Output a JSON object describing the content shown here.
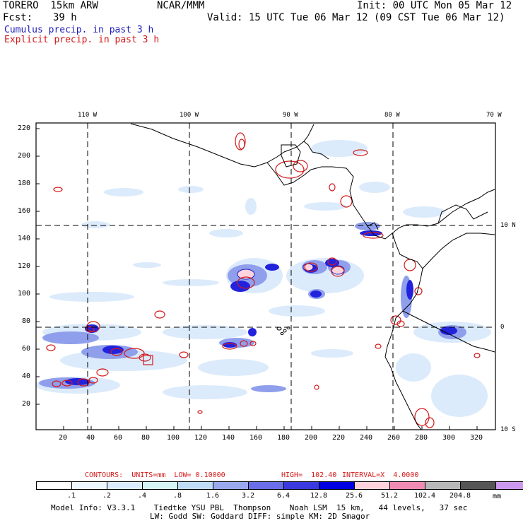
{
  "header": {
    "model": "TORERO  15km ARW",
    "org": "NCAR/MMM",
    "init": "Init: 00 UTC Mon 05 Mar 12",
    "fcst_label": "Fcst:",
    "fcst_value": "39 h",
    "valid": "Valid: 15 UTC Tue 06 Mar 12 (09 CST Tue 06 Mar 12)",
    "line_cumulus": "Cumulus precip. in past 3 h",
    "line_explicit": "Explicit precip. in past 3 h"
  },
  "colors": {
    "cumulus": "#1b1bb8",
    "explicit": "#d21a1a",
    "coast": "#000000"
  },
  "map": {
    "top_lon_labels": [
      "110 W",
      "100 W",
      "90 W",
      "80 W",
      "70 W"
    ],
    "right_lat_labels": [
      "10 N",
      "0",
      "10 S"
    ],
    "left_ticks": [
      "220",
      "200",
      "180",
      "160",
      "140",
      "120",
      "100",
      "80",
      "60",
      "40",
      "20"
    ],
    "bottom_ticks": [
      "20",
      "40",
      "60",
      "80",
      "100",
      "120",
      "140",
      "160",
      "180",
      "200",
      "220",
      "240",
      "260",
      "280",
      "300",
      "320"
    ]
  },
  "contours_line": {
    "label": "CONTOURS:  UNITS=mm  LOW= 0.10000",
    "high": "HIGH=  102.40",
    "interval": "INTERVAL=X  4.0000"
  },
  "colorbar": {
    "colors": [
      "#ffffff",
      "#eef6ff",
      "#dcecff",
      "#d6f5f7",
      "#bfdcf7",
      "#9aa8ee",
      "#6a6ee8",
      "#3a3adf",
      "#0000e0",
      "#ffd3dd",
      "#f08cb4",
      "#b8b8b8",
      "#555555",
      "#cc99ee"
    ],
    "labels": [
      ".1",
      ".2",
      ".4",
      ".8",
      "1.6",
      "3.2",
      "6.4",
      "12.8",
      "25.6",
      "51.2",
      "102.4",
      "204.8"
    ],
    "unit": "mm"
  },
  "footer": {
    "line1": "Model Info: V3.3.1    Tiedtke YSU PBL  Thompson    Noah LSM  15 km,   44 levels,   37 sec",
    "line2": "LW: Godd SW: Goddard DIFF: simple KM: 2D Smagor"
  }
}
